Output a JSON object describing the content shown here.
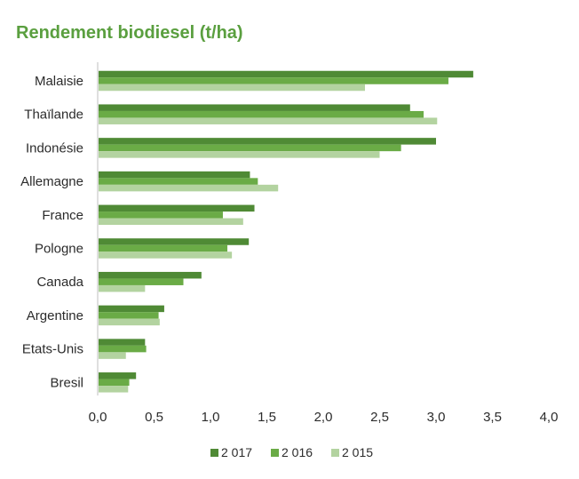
{
  "chart_data": {
    "type": "bar",
    "orientation": "horizontal",
    "title": "Rendement biodiesel (t/ha)",
    "categories": [
      "Malaisie",
      "Thaïlande",
      "Indonésie",
      "Allemagne",
      "France",
      "Pologne",
      "Canada",
      "Argentine",
      "Etats-Unis",
      "Bresil"
    ],
    "series": [
      {
        "name": "2 017",
        "color": "#4f8a35",
        "values": [
          3.33,
          2.77,
          3.0,
          1.35,
          1.39,
          1.34,
          0.92,
          0.59,
          0.42,
          0.34
        ]
      },
      {
        "name": "2 016",
        "color": "#6aab46",
        "values": [
          3.11,
          2.89,
          2.69,
          1.42,
          1.11,
          1.15,
          0.76,
          0.54,
          0.43,
          0.28
        ]
      },
      {
        "name": "2 015",
        "color": "#b3d3a0",
        "values": [
          2.37,
          3.01,
          2.5,
          1.6,
          1.29,
          1.19,
          0.42,
          0.55,
          0.25,
          0.27
        ]
      }
    ],
    "xlim": [
      0,
      4
    ],
    "xticks": [
      "0,0",
      "0,5",
      "1,0",
      "1,5",
      "2,0",
      "2,5",
      "3,0",
      "3,5",
      "4,0"
    ],
    "legend_position": "bottom",
    "grid": false
  }
}
